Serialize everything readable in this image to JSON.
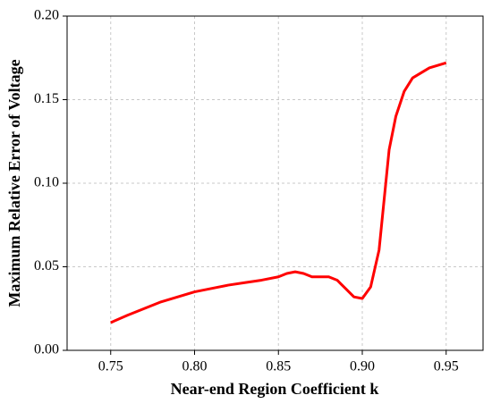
{
  "chart_data": {
    "type": "line",
    "x_label": "Near-end Region Coefficient k",
    "y_label": "Maximum Relative Error of Voltage",
    "x": [
      0.75,
      0.76,
      0.77,
      0.78,
      0.79,
      0.8,
      0.81,
      0.82,
      0.83,
      0.84,
      0.85,
      0.855,
      0.86,
      0.865,
      0.87,
      0.88,
      0.885,
      0.89,
      0.895,
      0.9,
      0.905,
      0.91,
      0.913,
      0.916,
      0.92,
      0.925,
      0.93,
      0.94,
      0.95
    ],
    "series": [
      {
        "color": "#ff0000",
        "values": [
          0.0166,
          0.021,
          0.025,
          0.029,
          0.032,
          0.035,
          0.037,
          0.039,
          0.0405,
          0.042,
          0.044,
          0.046,
          0.047,
          0.046,
          0.044,
          0.044,
          0.042,
          0.037,
          0.032,
          0.031,
          0.038,
          0.06,
          0.09,
          0.12,
          0.14,
          0.155,
          0.163,
          0.169,
          0.172
        ]
      }
    ],
    "xlim": [
      0.724,
      0.972
    ],
    "ylim": [
      0,
      0.2
    ],
    "xticks": [
      0.75,
      {
        "value": 0.8,
        "label": "0.80"
      },
      0.85,
      {
        "value": 0.9,
        "label": "0.90"
      },
      0.95
    ],
    "yticks": [
      {
        "value": 0,
        "label": "0.00"
      },
      {
        "value": 0.05,
        "label": "0.05"
      },
      {
        "value": 0.1,
        "label": "0.10"
      },
      {
        "value": 0.15,
        "label": "0.15"
      },
      {
        "value": 0.2,
        "label": "0.20"
      }
    ],
    "grid": true
  }
}
